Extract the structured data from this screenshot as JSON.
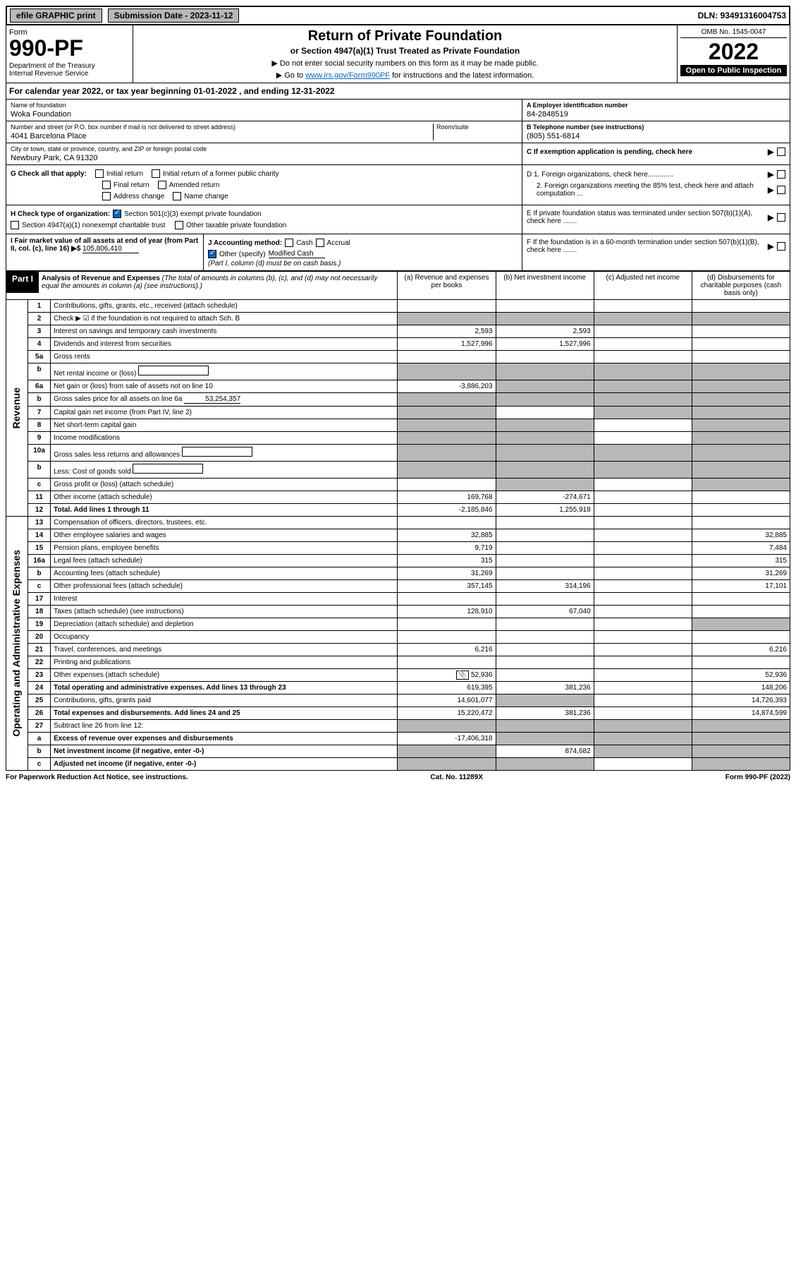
{
  "top_bar": {
    "efile": "efile GRAPHIC print",
    "submission_label": "Submission Date - 2023-11-12",
    "dln": "DLN: 93491316004753"
  },
  "header": {
    "form_label": "Form",
    "form_number": "990-PF",
    "dept": "Department of the Treasury\nInternal Revenue Service",
    "title": "Return of Private Foundation",
    "subtitle": "or Section 4947(a)(1) Trust Treated as Private Foundation",
    "note1": "▶ Do not enter social security numbers on this form as it may be made public.",
    "note2_pre": "▶ Go to ",
    "note2_link": "www.irs.gov/Form990PF",
    "note2_post": " for instructions and the latest information.",
    "omb": "OMB No. 1545-0047",
    "year": "2022",
    "open": "Open to Public Inspection"
  },
  "cal_year": "For calendar year 2022, or tax year beginning 01-01-2022               , and ending 12-31-2022",
  "entity": {
    "name_label": "Name of foundation",
    "name": "Woka Foundation",
    "street_label": "Number and street (or P.O. box number if mail is not delivered to street address)",
    "street": "4041 Barcelona Place",
    "room_label": "Room/suite",
    "city_label": "City or town, state or province, country, and ZIP or foreign postal code",
    "city": "Newbury Park, CA  91320",
    "ein_label": "A Employer identification number",
    "ein": "84-2848519",
    "phone_label": "B Telephone number (see instructions)",
    "phone": "(805) 551-6814",
    "c_label": "C If exemption application is pending, check here",
    "d1": "D 1. Foreign organizations, check here.............",
    "d2": "2. Foreign organizations meeting the 85% test, check here and attach computation ...",
    "e_label": "E If private foundation status was terminated under section 507(b)(1)(A), check here .......",
    "f_label": "F If the foundation is in a 60-month termination under section 507(b)(1)(B), check here ......."
  },
  "g": {
    "label": "G Check all that apply:",
    "initial": "Initial return",
    "initial_former": "Initial return of a former public charity",
    "final": "Final return",
    "amended": "Amended return",
    "address": "Address change",
    "name_change": "Name change"
  },
  "h": {
    "label": "H Check type of organization:",
    "opt1": "Section 501(c)(3) exempt private foundation",
    "opt2": "Section 4947(a)(1) nonexempt charitable trust",
    "opt3": "Other taxable private foundation"
  },
  "i": {
    "label": "I Fair market value of all assets at end of year (from Part II, col. (c), line 16) ▶$",
    "value": "105,806,410"
  },
  "j": {
    "label": "J Accounting method:",
    "cash": "Cash",
    "accrual": "Accrual",
    "other": "Other (specify)",
    "other_val": "Modified Cash",
    "note": "(Part I, column (d) must be on cash basis.)"
  },
  "part1": {
    "label": "Part I",
    "title": "Analysis of Revenue and Expenses",
    "title_note": "(The total of amounts in columns (b), (c), and (d) may not necessarily equal the amounts in column (a) (see instructions).)",
    "col_a": "(a) Revenue and expenses per books",
    "col_b": "(b) Net investment income",
    "col_c": "(c) Adjusted net income",
    "col_d": "(d) Disbursements for charitable purposes (cash basis only)"
  },
  "sides": {
    "revenue": "Revenue",
    "expenses": "Operating and Administrative Expenses"
  },
  "rows": [
    {
      "n": "1",
      "desc": "Contributions, gifts, grants, etc., received (attach schedule)",
      "a": "",
      "b": "",
      "c": "",
      "d": ""
    },
    {
      "n": "2",
      "desc": "Check ▶ ☑ if the foundation is not required to attach Sch. B",
      "a": "s",
      "b": "s",
      "c": "s",
      "d": "s"
    },
    {
      "n": "3",
      "desc": "Interest on savings and temporary cash investments",
      "a": "2,593",
      "b": "2,593",
      "c": "",
      "d": ""
    },
    {
      "n": "4",
      "desc": "Dividends and interest from securities",
      "a": "1,527,996",
      "b": "1,527,996",
      "c": "",
      "d": ""
    },
    {
      "n": "5a",
      "desc": "Gross rents",
      "a": "",
      "b": "",
      "c": "",
      "d": ""
    },
    {
      "n": "b",
      "desc": "Net rental income or (loss)",
      "a": "s",
      "b": "s",
      "c": "s",
      "d": "s",
      "inline": true
    },
    {
      "n": "6a",
      "desc": "Net gain or (loss) from sale of assets not on line 10",
      "a": "-3,886,203",
      "b": "s",
      "c": "s",
      "d": "s"
    },
    {
      "n": "b",
      "desc": "Gross sales price for all assets on line 6a",
      "a": "s",
      "b": "s",
      "c": "s",
      "d": "s",
      "inline": true,
      "inline_val": "53,254,357"
    },
    {
      "n": "7",
      "desc": "Capital gain net income (from Part IV, line 2)",
      "a": "s",
      "b": "",
      "c": "s",
      "d": "s"
    },
    {
      "n": "8",
      "desc": "Net short-term capital gain",
      "a": "s",
      "b": "s",
      "c": "",
      "d": "s"
    },
    {
      "n": "9",
      "desc": "Income modifications",
      "a": "s",
      "b": "s",
      "c": "",
      "d": "s"
    },
    {
      "n": "10a",
      "desc": "Gross sales less returns and allowances",
      "a": "s",
      "b": "s",
      "c": "s",
      "d": "s",
      "inline": true
    },
    {
      "n": "b",
      "desc": "Less: Cost of goods sold",
      "a": "s",
      "b": "s",
      "c": "s",
      "d": "s",
      "inline": true
    },
    {
      "n": "c",
      "desc": "Gross profit or (loss) (attach schedule)",
      "a": "",
      "b": "s",
      "c": "",
      "d": "s"
    },
    {
      "n": "11",
      "desc": "Other income (attach schedule)",
      "a": "169,768",
      "b": "-274,671",
      "c": "",
      "d": ""
    },
    {
      "n": "12",
      "desc": "Total. Add lines 1 through 11",
      "a": "-2,185,846",
      "b": "1,255,918",
      "c": "",
      "d": "",
      "bold": true
    }
  ],
  "exp_rows": [
    {
      "n": "13",
      "desc": "Compensation of officers, directors, trustees, etc.",
      "a": "",
      "b": "",
      "c": "",
      "d": ""
    },
    {
      "n": "14",
      "desc": "Other employee salaries and wages",
      "a": "32,885",
      "b": "",
      "c": "",
      "d": "32,885"
    },
    {
      "n": "15",
      "desc": "Pension plans, employee benefits",
      "a": "9,719",
      "b": "",
      "c": "",
      "d": "7,484"
    },
    {
      "n": "16a",
      "desc": "Legal fees (attach schedule)",
      "a": "315",
      "b": "",
      "c": "",
      "d": "315"
    },
    {
      "n": "b",
      "desc": "Accounting fees (attach schedule)",
      "a": "31,269",
      "b": "",
      "c": "",
      "d": "31,269"
    },
    {
      "n": "c",
      "desc": "Other professional fees (attach schedule)",
      "a": "357,145",
      "b": "314,196",
      "c": "",
      "d": "17,101"
    },
    {
      "n": "17",
      "desc": "Interest",
      "a": "",
      "b": "",
      "c": "",
      "d": ""
    },
    {
      "n": "18",
      "desc": "Taxes (attach schedule) (see instructions)",
      "a": "128,910",
      "b": "67,040",
      "c": "",
      "d": ""
    },
    {
      "n": "19",
      "desc": "Depreciation (attach schedule) and depletion",
      "a": "",
      "b": "",
      "c": "",
      "d": "s"
    },
    {
      "n": "20",
      "desc": "Occupancy",
      "a": "",
      "b": "",
      "c": "",
      "d": ""
    },
    {
      "n": "21",
      "desc": "Travel, conferences, and meetings",
      "a": "6,216",
      "b": "",
      "c": "",
      "d": "6,216"
    },
    {
      "n": "22",
      "desc": "Printing and publications",
      "a": "",
      "b": "",
      "c": "",
      "d": ""
    },
    {
      "n": "23",
      "desc": "Other expenses (attach schedule)",
      "a": "52,936",
      "b": "",
      "c": "",
      "d": "52,936",
      "icon": true
    },
    {
      "n": "24",
      "desc": "Total operating and administrative expenses. Add lines 13 through 23",
      "a": "619,395",
      "b": "381,236",
      "c": "",
      "d": "148,206",
      "bold": true
    },
    {
      "n": "25",
      "desc": "Contributions, gifts, grants paid",
      "a": "14,601,077",
      "b": "s",
      "c": "",
      "d": "14,726,393"
    },
    {
      "n": "26",
      "desc": "Total expenses and disbursements. Add lines 24 and 25",
      "a": "15,220,472",
      "b": "381,236",
      "c": "",
      "d": "14,874,599",
      "bold": true
    },
    {
      "n": "27",
      "desc": "Subtract line 26 from line 12:",
      "a": "s",
      "b": "s",
      "c": "s",
      "d": "s"
    },
    {
      "n": "a",
      "desc": "Excess of revenue over expenses and disbursements",
      "a": "-17,406,318",
      "b": "s",
      "c": "s",
      "d": "s",
      "bold": true
    },
    {
      "n": "b",
      "desc": "Net investment income (if negative, enter -0-)",
      "a": "s",
      "b": "874,682",
      "c": "s",
      "d": "s",
      "bold": true
    },
    {
      "n": "c",
      "desc": "Adjusted net income (if negative, enter -0-)",
      "a": "s",
      "b": "s",
      "c": "",
      "d": "s",
      "bold": true
    }
  ],
  "footer": {
    "left": "For Paperwork Reduction Act Notice, see instructions.",
    "center": "Cat. No. 11289X",
    "right": "Form 990-PF (2022)"
  }
}
